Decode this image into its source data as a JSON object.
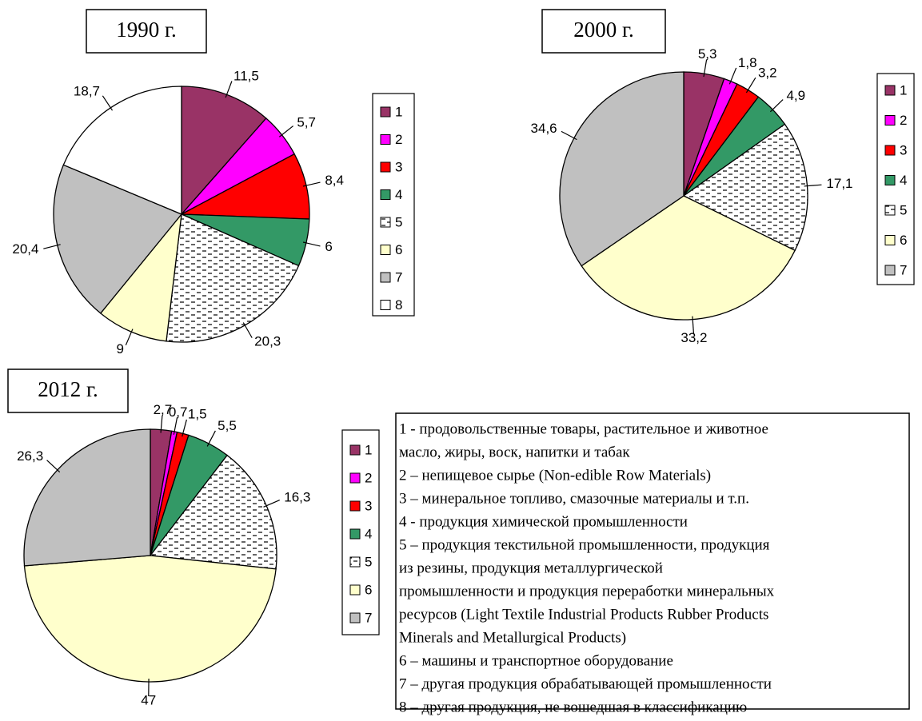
{
  "chart_data": [
    {
      "type": "pie",
      "title": "1990 г.",
      "categories": [
        "1",
        "2",
        "3",
        "4",
        "5",
        "6",
        "7",
        "8"
      ],
      "values": [
        11.5,
        5.7,
        8.4,
        6,
        20.3,
        9,
        20.4,
        18.7
      ],
      "value_labels": [
        "11,5",
        "5,7",
        "8,4",
        "6",
        "20,3",
        "9",
        "20,4",
        "18,7"
      ],
      "colors": [
        "#993366",
        "#ff00ff",
        "#ff0000",
        "#339966",
        "#ffffff",
        "#ffffcc",
        "#c0c0c0",
        "#ffffff"
      ],
      "patterns": [
        null,
        null,
        null,
        null,
        "dashes",
        null,
        null,
        null
      ]
    },
    {
      "type": "pie",
      "title": "2000 г.",
      "categories": [
        "1",
        "2",
        "3",
        "4",
        "5",
        "6",
        "7"
      ],
      "values": [
        5.3,
        1.8,
        3.2,
        4.9,
        17.1,
        33.2,
        34.6
      ],
      "value_labels": [
        "5,3",
        "1,8",
        "3,2",
        "4,9",
        "17,1",
        "33,2",
        "34,6"
      ],
      "colors": [
        "#993366",
        "#ff00ff",
        "#ff0000",
        "#339966",
        "#ffffff",
        "#ffffcc",
        "#c0c0c0"
      ],
      "patterns": [
        null,
        null,
        null,
        null,
        "dashes",
        null,
        null
      ]
    },
    {
      "type": "pie",
      "title": "2012 г.",
      "categories": [
        "1",
        "2",
        "3",
        "4",
        "5",
        "6",
        "7"
      ],
      "values": [
        2.7,
        0.7,
        1.5,
        5.5,
        16.3,
        47,
        26.3
      ],
      "value_labels": [
        "2,7",
        "0,7",
        "1,5",
        "5,5",
        "16,3",
        "47",
        "26,3"
      ],
      "colors": [
        "#993366",
        "#ff00ff",
        "#ff0000",
        "#339966",
        "#ffffff",
        "#ffffcc",
        "#c0c0c0"
      ],
      "patterns": [
        null,
        null,
        null,
        null,
        "dashes",
        null,
        null
      ]
    }
  ],
  "legend_box": {
    "lines": [
      "1 - продовольственные товары, растительное и животное",
      "масло, жиры, воск, напитки и табак",
      "2 – непищевое сырье (Non-edible Row Materials)",
      "3 – минеральное топливо, смазочные материалы и т.п.",
      "4 - продукция химической промышленности",
      "5 – продукция текстильной промышленности, продукция",
      "из  резины, продукция металлургической",
      "промышленности и продукция переработки минеральных",
      "ресурсов (Light Textile Industrial Products Rubber Products",
      "Minerals and Metallurgical Products)",
      "6 – машины и транспортное оборудование",
      "7 – другая продукция обрабатывающей промышленности",
      "8 – другая продукция, не вошедшая в классификацию"
    ]
  }
}
